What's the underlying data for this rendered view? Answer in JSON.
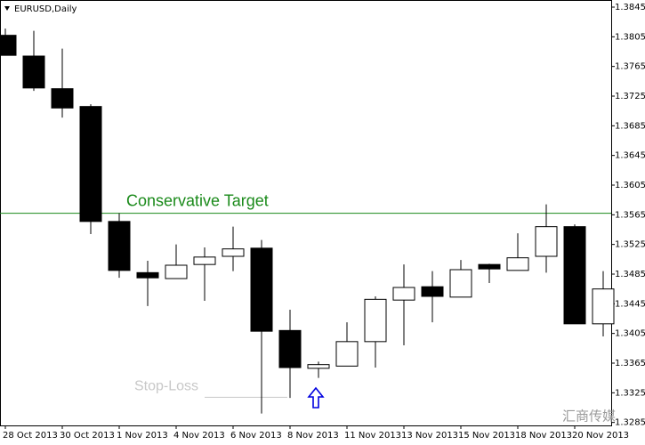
{
  "chart_data": {
    "type": "candlestick",
    "title": "EURUSD,Daily",
    "categories": [
      "28 Oct 2013",
      null,
      "30 Oct 2013",
      null,
      "1 Nov 2013",
      null,
      "4 Nov 2013",
      null,
      "6 Nov 2013",
      null,
      "8 Nov 2013",
      null,
      "11 Nov 2013",
      null,
      "13 Nov 2013",
      null,
      "15 Nov 2013",
      null,
      "18 Nov 2013",
      null,
      "20 Nov 2013",
      null
    ],
    "open": [
      1.3807,
      1.3779,
      1.3735,
      1.3711,
      1.3556,
      1.3487,
      1.3479,
      1.3498,
      1.3509,
      1.352,
      1.3409,
      1.3358,
      1.3361,
      1.3394,
      1.345,
      1.3468,
      1.3454,
      1.3498,
      1.349,
      1.3509,
      1.3549,
      1.3418
    ],
    "high": [
      1.3816,
      1.3813,
      1.3789,
      1.3714,
      1.3567,
      1.3503,
      1.3525,
      1.3521,
      1.3549,
      1.3531,
      1.3437,
      1.3367,
      1.342,
      1.3455,
      1.3498,
      1.3489,
      1.3504,
      1.3499,
      1.354,
      1.3579,
      1.3552,
      1.3489
    ],
    "low": [
      1.378,
      1.3732,
      1.3696,
      1.3539,
      1.348,
      1.3442,
      1.3479,
      1.3449,
      1.3489,
      1.3297,
      1.3318,
      1.3345,
      1.3361,
      1.3359,
      1.3389,
      1.342,
      1.3454,
      1.3473,
      1.349,
      1.3487,
      1.3418,
      1.3401
    ],
    "close": [
      1.378,
      1.3736,
      1.3709,
      1.3556,
      1.349,
      1.348,
      1.3497,
      1.3508,
      1.3519,
      1.3408,
      1.3359,
      1.3363,
      1.3394,
      1.3451,
      1.3467,
      1.3455,
      1.3491,
      1.3492,
      1.3507,
      1.3549,
      1.3418,
      1.3465
    ],
    "up_color": "#ffffff",
    "down_color": "#000000",
    "ylim": [
      1.3281,
      1.38546
    ],
    "yticks": [
      1.3845,
      1.3805,
      1.3765,
      1.3725,
      1.3685,
      1.3645,
      1.3605,
      1.3565,
      1.3525,
      1.3485,
      1.3445,
      1.3405,
      1.3365,
      1.3325,
      1.3285
    ],
    "annotations": [
      {
        "text": "Conservative Target",
        "value": 1.3567,
        "color": "#1a8a1a"
      },
      {
        "text": "Stop-Loss",
        "value": 1.3319,
        "color": "#c8c8c8"
      }
    ],
    "watermark": "汇商传媒"
  }
}
